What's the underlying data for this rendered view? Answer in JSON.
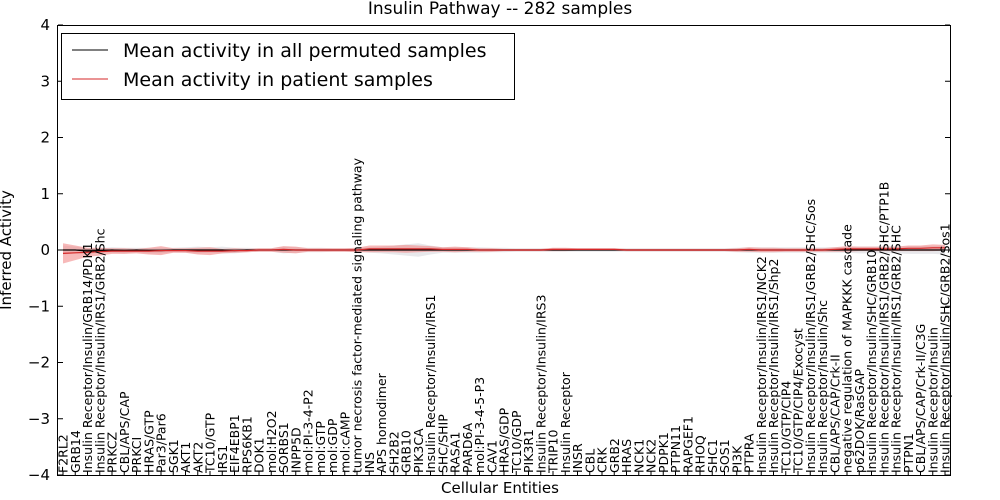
{
  "chart_data": {
    "type": "line",
    "title": "Insulin Pathway -- 282 samples",
    "xlabel": "Cellular Entities",
    "ylabel": "Inferred Activity",
    "ylim": [
      -4,
      4
    ],
    "yticks": [
      -4,
      -3,
      -2,
      -1,
      0,
      1,
      2,
      3,
      4
    ],
    "legend_position": "top-left",
    "categories": [
      "F2RL2",
      "GRB14",
      "Insulin Receptor/Insulin/GRB14/PDK1",
      "Insulin Receptor/Insulin/IRS1/GRB2/Shc",
      "PRKCZ",
      "CBL/APS/CAP",
      "PRKCI",
      "HRAS/GTP",
      "Par3/Par6",
      "SGK1",
      "AKT1",
      "AKT2",
      "TC10/GTP",
      "IRS1",
      "EIF4EBP1",
      "RPS6KB1",
      "DOK1",
      "mol:H2O2",
      "SORBS1",
      "INPP5D",
      "mol:PI-3-4-P2",
      "mol:GTP",
      "mol:GDP",
      "mol:cAMP",
      "tumor necrosis factor-mediated signaling pathway",
      "INS",
      "APS homodimer",
      "SH2B2",
      "GRB10",
      "PIK3CA",
      "Insulin Receptor/Insulin/IRS1",
      "SHC/SHIP",
      "RASA1",
      "PARD6A",
      "mol:PI-3-4-5-P3",
      "CAV1",
      "HRAS/GDP",
      "TC10/GDP",
      "PIK3R1",
      "Insulin Receptor/Insulin/IRS3",
      "TRIP10",
      "Insulin Receptor",
      "INSR",
      "CBL",
      "CRK",
      "GRB2",
      "HRAS",
      "NCK1",
      "NCK2",
      "PDPK1",
      "PTPN11",
      "RAPGEF1",
      "RHOQ",
      "SHC1",
      "SOS1",
      "PI3K",
      "PTPRA",
      "Insulin Receptor/Insulin/IRS1/NCK2",
      "Insulin Receptor/Insulin/IRS1/Shp2",
      "TC10/GTP/CIP4",
      "TC10/GTP/CIP4/Exocyst",
      "Insulin Receptor/Insulin/IRS1/GRB2/SHC/Sos",
      "Insulin Receptor/Insulin/Shc",
      "CBL/APS/CAP/Crk-II",
      "negative regulation of MAPKKK cascade",
      "p62DOK/RasGAP",
      "Insulin Receptor/Insulin/SHC/GRB10",
      "Insulin Receptor/Insulin/IRS1/GRB2/SHC/PTP1B",
      "Insulin Receptor/Insulin/IRS1/GRB2/SHC",
      "PTPN1",
      "CBL/APS/CAP/Crk-II/C3G",
      "Insulin Receptor/Insulin",
      "Insulin Receptor/Insulin/SHC/GRB2/Sos1"
    ],
    "series": [
      {
        "name": "Mean activity in all permuted samples",
        "color": "#000000",
        "values": [
          0.0,
          0.0,
          -0.02,
          -0.01,
          0.0,
          -0.01,
          0.0,
          -0.01,
          -0.01,
          0.0,
          0.0,
          0.0,
          0.0,
          0.0,
          -0.01,
          0.0,
          0.0,
          0.0,
          0.0,
          0.0,
          0.0,
          0.0,
          0.0,
          0.0,
          0.0,
          0.0,
          0.0,
          0.0,
          0.0,
          0.0,
          0.0,
          0.0,
          0.0,
          0.0,
          0.0,
          0.0,
          0.0,
          0.0,
          0.0,
          0.0,
          0.0,
          0.0,
          0.0,
          0.0,
          0.0,
          0.0,
          0.0,
          0.0,
          0.0,
          0.0,
          0.0,
          0.0,
          0.0,
          0.0,
          0.0,
          0.0,
          0.0,
          0.0,
          0.0,
          0.0,
          0.0,
          0.0,
          0.0,
          0.0,
          0.0,
          0.0,
          0.0,
          0.0,
          0.0,
          0.0,
          0.0,
          0.0,
          0.0
        ],
        "band": [
          0.08,
          0.06,
          0.05,
          0.04,
          0.05,
          0.05,
          0.04,
          0.05,
          0.05,
          0.04,
          0.05,
          0.06,
          0.05,
          0.06,
          0.05,
          0.04,
          0.03,
          0.03,
          0.06,
          0.05,
          0.04,
          0.04,
          0.03,
          0.03,
          0.03,
          0.05,
          0.06,
          0.08,
          0.1,
          0.12,
          0.08,
          0.05,
          0.05,
          0.05,
          0.05,
          0.04,
          0.04,
          0.03,
          0.03,
          0.03,
          0.03,
          0.03,
          0.03,
          0.03,
          0.03,
          0.03,
          0.03,
          0.03,
          0.03,
          0.03,
          0.03,
          0.03,
          0.03,
          0.03,
          0.03,
          0.04,
          0.05,
          0.05,
          0.05,
          0.05,
          0.05,
          0.05,
          0.05,
          0.05,
          0.05,
          0.06,
          0.06,
          0.06,
          0.06,
          0.07,
          0.07,
          0.07,
          0.08
        ]
      },
      {
        "name": "Mean activity in patient samples",
        "color": "#d62728",
        "values": [
          -0.06,
          -0.05,
          -0.04,
          -0.03,
          -0.02,
          -0.02,
          -0.02,
          -0.02,
          -0.01,
          -0.01,
          -0.01,
          -0.02,
          -0.02,
          -0.02,
          -0.01,
          -0.01,
          0.0,
          0.0,
          0.01,
          0.0,
          0.0,
          0.0,
          0.0,
          0.0,
          0.0,
          0.02,
          0.02,
          0.02,
          0.02,
          0.02,
          0.02,
          0.01,
          0.01,
          0.01,
          0.0,
          0.0,
          0.0,
          0.0,
          0.0,
          0.0,
          0.01,
          0.01,
          0.01,
          0.01,
          0.01,
          0.01,
          0.0,
          0.0,
          0.0,
          0.0,
          0.0,
          0.0,
          0.0,
          0.0,
          0.0,
          0.0,
          0.01,
          0.0,
          0.0,
          0.0,
          0.0,
          0.0,
          0.0,
          0.01,
          0.02,
          0.02,
          0.02,
          0.02,
          0.02,
          0.03,
          0.03,
          0.04,
          0.04
        ],
        "band": [
          0.18,
          0.13,
          0.08,
          0.07,
          0.05,
          0.05,
          0.04,
          0.06,
          0.08,
          0.04,
          0.04,
          0.06,
          0.07,
          0.04,
          0.04,
          0.03,
          0.03,
          0.03,
          0.06,
          0.06,
          0.03,
          0.03,
          0.03,
          0.03,
          0.04,
          0.06,
          0.06,
          0.06,
          0.07,
          0.06,
          0.05,
          0.04,
          0.05,
          0.04,
          0.03,
          0.03,
          0.02,
          0.02,
          0.02,
          0.02,
          0.03,
          0.03,
          0.02,
          0.02,
          0.02,
          0.02,
          0.02,
          0.02,
          0.02,
          0.02,
          0.02,
          0.02,
          0.02,
          0.02,
          0.02,
          0.03,
          0.04,
          0.04,
          0.04,
          0.03,
          0.03,
          0.03,
          0.03,
          0.04,
          0.05,
          0.04,
          0.04,
          0.04,
          0.04,
          0.05,
          0.05,
          0.06,
          0.05
        ]
      }
    ]
  }
}
